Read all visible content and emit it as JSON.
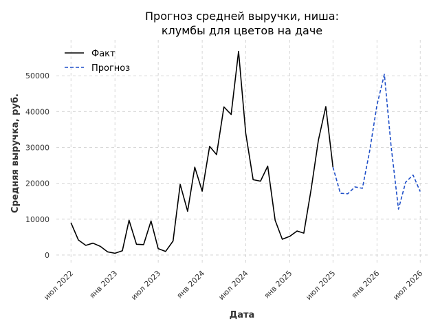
{
  "chart_data": {
    "type": "line",
    "title": [
      "Прогноз средней выручки, ниша:",
      "клумбы для цветов на даче"
    ],
    "xlabel": "Дата",
    "ylabel": "Средняя выручка, руб.",
    "xlim": [
      "2022-05-01",
      "2026-08-01"
    ],
    "ylim": [
      -2500,
      60000
    ],
    "xticks": [
      {
        "date": "2022-07-01",
        "label": "июл 2022"
      },
      {
        "date": "2023-01-01",
        "label": "янв 2023"
      },
      {
        "date": "2023-07-01",
        "label": "июл 2023"
      },
      {
        "date": "2024-01-01",
        "label": "янв 2024"
      },
      {
        "date": "2024-07-01",
        "label": "июл 2024"
      },
      {
        "date": "2025-01-01",
        "label": "янв 2025"
      },
      {
        "date": "2025-07-01",
        "label": "июл 2025"
      },
      {
        "date": "2026-01-01",
        "label": "янв 2026"
      },
      {
        "date": "2026-07-01",
        "label": "июл 2026"
      }
    ],
    "yticks": [
      0,
      10000,
      20000,
      30000,
      40000,
      50000
    ],
    "grid": true,
    "legend": "top-left",
    "series": [
      {
        "name": "Факт",
        "color": "#000000",
        "style": "solid",
        "x": [
          "2022-07-01",
          "2022-08-01",
          "2022-09-01",
          "2022-10-01",
          "2022-11-01",
          "2022-12-01",
          "2023-01-01",
          "2023-02-01",
          "2023-03-01",
          "2023-04-01",
          "2023-05-01",
          "2023-06-01",
          "2023-07-01",
          "2023-08-01",
          "2023-09-01",
          "2023-10-01",
          "2023-11-01",
          "2023-12-01",
          "2024-01-01",
          "2024-02-01",
          "2024-03-01",
          "2024-04-01",
          "2024-05-01",
          "2024-06-01",
          "2024-07-01",
          "2024-08-01",
          "2024-09-01",
          "2024-10-01",
          "2024-11-01",
          "2024-12-01",
          "2025-01-01",
          "2025-02-01",
          "2025-03-01",
          "2025-04-01",
          "2025-05-01",
          "2025-06-01",
          "2025-07-01"
        ],
        "values": [
          9000,
          4200,
          2700,
          3300,
          2400,
          900,
          500,
          1200,
          9700,
          3000,
          2900,
          9500,
          1800,
          1000,
          3900,
          19700,
          12200,
          24500,
          17800,
          30300,
          28000,
          41300,
          39200,
          56800,
          34000,
          21000,
          20600,
          24800,
          9700,
          4400,
          5200,
          6700,
          6100,
          18500,
          32000,
          41400,
          24500
        ]
      },
      {
        "name": "Прогноз",
        "color": "#1f4fc8",
        "style": "dashed",
        "x": [
          "2025-07-01",
          "2025-08-01",
          "2025-09-01",
          "2025-10-01",
          "2025-11-01",
          "2025-12-01",
          "2026-01-01",
          "2026-02-01",
          "2026-03-01",
          "2026-04-01",
          "2026-05-01",
          "2026-06-01",
          "2026-07-01"
        ],
        "values": [
          24500,
          17200,
          17100,
          19000,
          18600,
          28800,
          41800,
          50400,
          30500,
          12800,
          20300,
          22300,
          17700
        ]
      }
    ]
  }
}
